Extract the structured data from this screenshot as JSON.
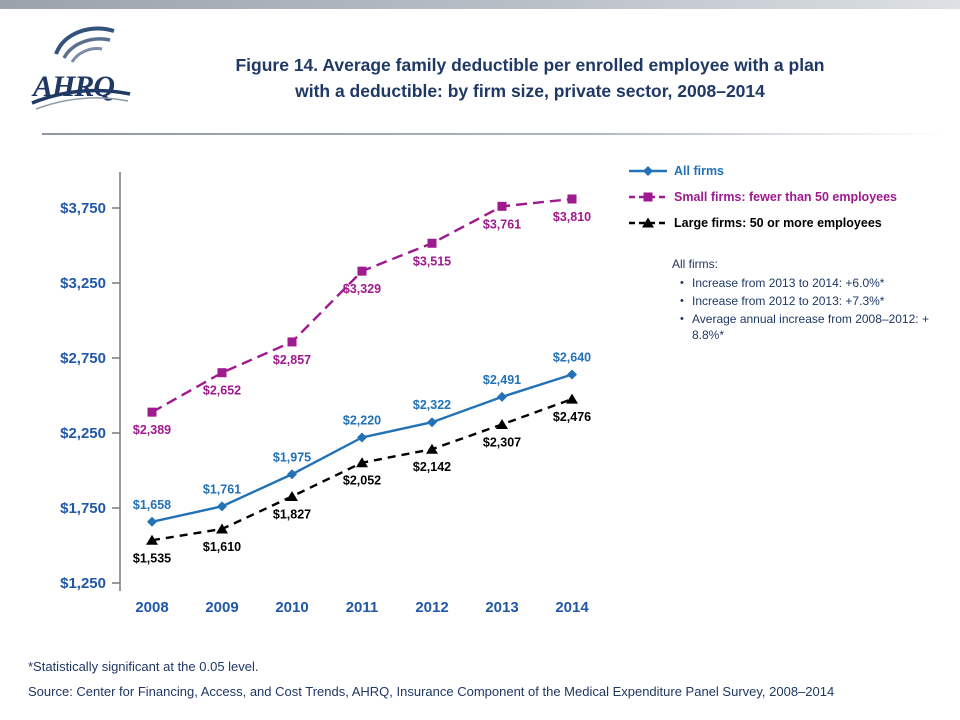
{
  "slide": {
    "logo_text": "AHRQ",
    "title_line1": "Figure 14.  Average family deductible per enrolled employee with a plan",
    "title_line2": "with a deductible: by firm size, private sector, 2008–2014",
    "footnote": "*Statistically significant at the 0.05 level.",
    "source": "Source: Center for Financing, Access, and Cost Trends, AHRQ, Insurance Component of the Medical Expenditure Panel Survey, 2008–2014"
  },
  "annotation": {
    "title": "All firms:",
    "bullets": [
      "Increase from 2013 to 2014:  +6.0%*",
      "Increase from 2012 to 2013:  +7.3%*",
      "Average annual increase from 2008–2012: + 8.8%*"
    ]
  },
  "colors": {
    "title": "#1F3864",
    "axis_label": "#2057A8",
    "footer": "#1F3864",
    "axis_line": "#7a7a7a"
  },
  "chart_data": {
    "type": "line",
    "title": "Figure 14. Average family deductible per enrolled employee with a plan with a deductible: by firm size, private sector, 2008–2014",
    "xlabel": "",
    "ylabel": "",
    "grid": false,
    "legend_position": "top-right",
    "categories": [
      "2008",
      "2009",
      "2010",
      "2011",
      "2012",
      "2013",
      "2014"
    ],
    "ylim": [
      1250,
      3750
    ],
    "yticks": [
      1250,
      1750,
      2250,
      2750,
      3250,
      3750
    ],
    "ytick_labels": [
      "$1,250",
      "$1,750",
      "$2,250",
      "$2,750",
      "$3,250",
      "$3,750"
    ],
    "series": [
      {
        "name": "All firms",
        "color": "#2272B5",
        "line_style": "solid",
        "dash": "",
        "marker": "diamond",
        "label_side": "above",
        "values": [
          1658,
          1761,
          1975,
          2220,
          2322,
          2491,
          2640
        ],
        "labels": [
          "$1,658",
          "$1,761",
          "$1,975",
          "$2,220",
          "$2,322",
          "$2,491",
          "$2,640"
        ]
      },
      {
        "name": "Small firms: fewer than 50 employees",
        "color": "#9E1A8E",
        "line_style": "dashed",
        "dash": "11 6",
        "marker": "square",
        "label_side": "below",
        "values": [
          2389,
          2652,
          2857,
          3329,
          3515,
          3761,
          3810
        ],
        "labels": [
          "$2,389",
          "$2,652",
          "$2,857",
          "$3,329",
          "$3,515",
          "$3,761",
          "$3,810"
        ]
      },
      {
        "name": "Large firms: 50 or more employees",
        "color": "#000000",
        "line_style": "dashed",
        "dash": "8 6",
        "marker": "triangle",
        "label_side": "below",
        "values": [
          1535,
          1610,
          1827,
          2052,
          2142,
          2307,
          2476
        ],
        "labels": [
          "$1,535",
          "$1,610",
          "$1,827",
          "$2,052",
          "$2,142",
          "$2,307",
          "$2,476"
        ]
      }
    ]
  }
}
